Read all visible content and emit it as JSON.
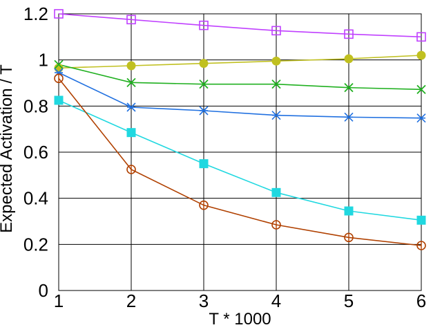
{
  "chart_data": {
    "type": "line",
    "title": "",
    "xlabel": "T * 1000",
    "ylabel": "Expected Activation / T",
    "x": [
      1,
      2,
      3,
      4,
      5,
      6
    ],
    "xlim": [
      1,
      6
    ],
    "ylim": [
      0,
      1.2
    ],
    "xticks": [
      "1",
      "2",
      "3",
      "4",
      "5",
      "6"
    ],
    "yticks": [
      "0",
      "0.2",
      "0.4",
      "0.6",
      "0.8",
      "1",
      "1.2"
    ],
    "grid": true,
    "legend": "none",
    "series": [
      {
        "color": "#c040ff",
        "marker": "open-square",
        "values": [
          1.2,
          1.175,
          1.15,
          1.127,
          1.112,
          1.1
        ]
      },
      {
        "color": "#c0c020",
        "marker": "filled-circle",
        "values": [
          0.965,
          0.975,
          0.985,
          0.995,
          1.005,
          1.02
        ]
      },
      {
        "color": "#20b020",
        "marker": "x",
        "values": [
          0.98,
          0.902,
          0.895,
          0.895,
          0.88,
          0.872
        ]
      },
      {
        "color": "#2070e0",
        "marker": "star",
        "values": [
          0.945,
          0.795,
          0.78,
          0.76,
          0.752,
          0.748
        ]
      },
      {
        "color": "#20d8e0",
        "marker": "filled-square",
        "values": [
          0.825,
          0.685,
          0.55,
          0.425,
          0.345,
          0.305
        ]
      },
      {
        "color": "#b04000",
        "marker": "open-circle",
        "values": [
          0.92,
          0.525,
          0.37,
          0.285,
          0.23,
          0.195
        ]
      }
    ]
  }
}
